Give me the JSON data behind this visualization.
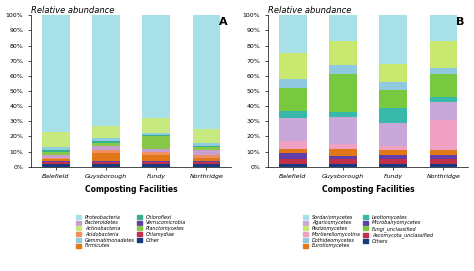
{
  "categories": [
    "Balefield",
    "Guysborough",
    "Fundy",
    "Northridge"
  ],
  "xlabel": "Composting Facilities",
  "panelA": {
    "label": "A",
    "title": "Relative abundance",
    "taxa": [
      "Other",
      "Chlamydiae",
      "Verrucomicrobia",
      "Firmicutes",
      "Acidobacteria",
      "Bacteroidetes",
      "Planctomycetes",
      "Chloroflexi",
      "Gemmatimonadetes",
      "Actinobacteria",
      "Proteobacteria"
    ],
    "colors": [
      "#1a3a80",
      "#c0304a",
      "#6040a8",
      "#e07818",
      "#f09060",
      "#c8a0d0",
      "#88c848",
      "#38b090",
      "#90cce0",
      "#c8e880",
      "#a8e0e8"
    ],
    "values": [
      [
        2,
        2,
        2,
        2
      ],
      [
        1,
        1,
        1,
        1
      ],
      [
        1,
        1,
        1,
        1
      ],
      [
        1,
        5,
        4,
        2
      ],
      [
        1,
        2,
        2,
        2
      ],
      [
        2,
        3,
        2,
        3
      ],
      [
        2,
        2,
        8,
        2
      ],
      [
        1,
        1,
        1,
        1
      ],
      [
        2,
        2,
        1,
        2
      ],
      [
        10,
        8,
        10,
        9
      ],
      [
        77,
        73,
        68,
        75
      ]
    ],
    "legend_labels": [
      "Proteobacteria",
      "Bacteroidetes",
      "Actinobacteria",
      "Acidobacteria",
      "Gemmatimonadetes",
      "Firmicutes",
      "Chloroflexi",
      "Verrucomicrobia",
      "Planctomycetes",
      "Chlamydiae",
      "Other"
    ],
    "legend_colors": [
      "#a8e0e8",
      "#c8a0d0",
      "#c8e880",
      "#f09060",
      "#90cce0",
      "#e07818",
      "#38b090",
      "#6040a8",
      "#88c848",
      "#c0304a",
      "#1a3a80"
    ]
  },
  "panelB": {
    "label": "B",
    "title": "Relative abundance",
    "taxa": [
      "Others",
      "Ascomycota_unclassified",
      "Microbairyomycetes",
      "Eurotiomycetes",
      "Mortierellomycotina",
      "Agaricomycetes",
      "Leotiomycetes",
      "Fungi_unclassified",
      "Dothideomycetes",
      "Pezizomycetes",
      "Sordariomycetes"
    ],
    "colors": [
      "#1a3a80",
      "#c0304a",
      "#6040a8",
      "#e07818",
      "#f0a0c0",
      "#c8a8d8",
      "#38b8a8",
      "#78c840",
      "#90c8e0",
      "#c8e870",
      "#a8e0e8"
    ],
    "values": [
      [
        2,
        2,
        2,
        2
      ],
      [
        3,
        3,
        3,
        3
      ],
      [
        4,
        2,
        3,
        3
      ],
      [
        3,
        5,
        3,
        3
      ],
      [
        5,
        3,
        3,
        20
      ],
      [
        15,
        18,
        15,
        12
      ],
      [
        5,
        3,
        10,
        3
      ],
      [
        15,
        25,
        12,
        15
      ],
      [
        6,
        6,
        5,
        4
      ],
      [
        17,
        16,
        12,
        18
      ],
      [
        25,
        17,
        32,
        17
      ]
    ],
    "legend_labels": [
      "Sordariomycetes",
      "Agaricomycetes",
      "Pezizomycetes",
      "Mortierellomycotina",
      "Dothideomycetes",
      "Eurotiomycetes",
      "Leotiomycetes",
      "Microbairyomycetes",
      "Fungi_unclassified",
      "Ascomycota_unclassified",
      "Others"
    ],
    "legend_colors": [
      "#a8e0e8",
      "#c8a8d8",
      "#c8e870",
      "#f0a0c0",
      "#90c8e0",
      "#e07818",
      "#38b8a8",
      "#6040a8",
      "#78c840",
      "#c0304a",
      "#1a3a80"
    ]
  }
}
